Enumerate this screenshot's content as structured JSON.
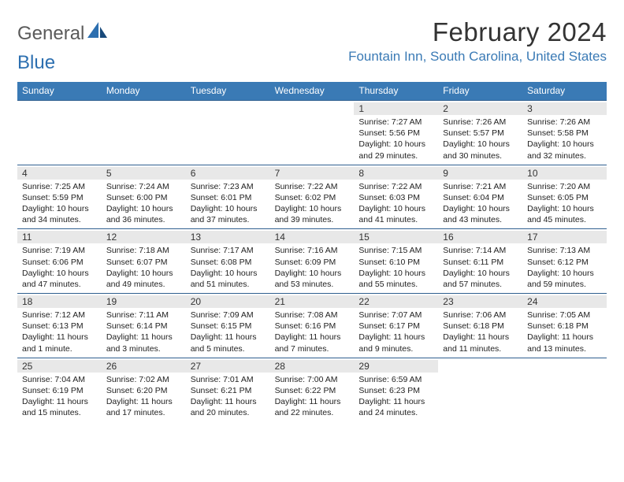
{
  "brand": {
    "part1": "General",
    "part2": "Blue"
  },
  "title": "February 2024",
  "location": "Fountain Inn, South Carolina, United States",
  "colors": {
    "header_bg": "#3a7ab5",
    "header_text": "#ffffff",
    "daynum_bg": "#e8e8e8",
    "border": "#2f5f8f",
    "brand_gray": "#5a5a5a",
    "brand_blue": "#2c6fb0"
  },
  "weekdays": [
    "Sunday",
    "Monday",
    "Tuesday",
    "Wednesday",
    "Thursday",
    "Friday",
    "Saturday"
  ],
  "weeks": [
    [
      {
        "n": "",
        "sr": "",
        "ss": "",
        "dl": ""
      },
      {
        "n": "",
        "sr": "",
        "ss": "",
        "dl": ""
      },
      {
        "n": "",
        "sr": "",
        "ss": "",
        "dl": ""
      },
      {
        "n": "",
        "sr": "",
        "ss": "",
        "dl": ""
      },
      {
        "n": "1",
        "sr": "Sunrise: 7:27 AM",
        "ss": "Sunset: 5:56 PM",
        "dl": "Daylight: 10 hours and 29 minutes."
      },
      {
        "n": "2",
        "sr": "Sunrise: 7:26 AM",
        "ss": "Sunset: 5:57 PM",
        "dl": "Daylight: 10 hours and 30 minutes."
      },
      {
        "n": "3",
        "sr": "Sunrise: 7:26 AM",
        "ss": "Sunset: 5:58 PM",
        "dl": "Daylight: 10 hours and 32 minutes."
      }
    ],
    [
      {
        "n": "4",
        "sr": "Sunrise: 7:25 AM",
        "ss": "Sunset: 5:59 PM",
        "dl": "Daylight: 10 hours and 34 minutes."
      },
      {
        "n": "5",
        "sr": "Sunrise: 7:24 AM",
        "ss": "Sunset: 6:00 PM",
        "dl": "Daylight: 10 hours and 36 minutes."
      },
      {
        "n": "6",
        "sr": "Sunrise: 7:23 AM",
        "ss": "Sunset: 6:01 PM",
        "dl": "Daylight: 10 hours and 37 minutes."
      },
      {
        "n": "7",
        "sr": "Sunrise: 7:22 AM",
        "ss": "Sunset: 6:02 PM",
        "dl": "Daylight: 10 hours and 39 minutes."
      },
      {
        "n": "8",
        "sr": "Sunrise: 7:22 AM",
        "ss": "Sunset: 6:03 PM",
        "dl": "Daylight: 10 hours and 41 minutes."
      },
      {
        "n": "9",
        "sr": "Sunrise: 7:21 AM",
        "ss": "Sunset: 6:04 PM",
        "dl": "Daylight: 10 hours and 43 minutes."
      },
      {
        "n": "10",
        "sr": "Sunrise: 7:20 AM",
        "ss": "Sunset: 6:05 PM",
        "dl": "Daylight: 10 hours and 45 minutes."
      }
    ],
    [
      {
        "n": "11",
        "sr": "Sunrise: 7:19 AM",
        "ss": "Sunset: 6:06 PM",
        "dl": "Daylight: 10 hours and 47 minutes."
      },
      {
        "n": "12",
        "sr": "Sunrise: 7:18 AM",
        "ss": "Sunset: 6:07 PM",
        "dl": "Daylight: 10 hours and 49 minutes."
      },
      {
        "n": "13",
        "sr": "Sunrise: 7:17 AM",
        "ss": "Sunset: 6:08 PM",
        "dl": "Daylight: 10 hours and 51 minutes."
      },
      {
        "n": "14",
        "sr": "Sunrise: 7:16 AM",
        "ss": "Sunset: 6:09 PM",
        "dl": "Daylight: 10 hours and 53 minutes."
      },
      {
        "n": "15",
        "sr": "Sunrise: 7:15 AM",
        "ss": "Sunset: 6:10 PM",
        "dl": "Daylight: 10 hours and 55 minutes."
      },
      {
        "n": "16",
        "sr": "Sunrise: 7:14 AM",
        "ss": "Sunset: 6:11 PM",
        "dl": "Daylight: 10 hours and 57 minutes."
      },
      {
        "n": "17",
        "sr": "Sunrise: 7:13 AM",
        "ss": "Sunset: 6:12 PM",
        "dl": "Daylight: 10 hours and 59 minutes."
      }
    ],
    [
      {
        "n": "18",
        "sr": "Sunrise: 7:12 AM",
        "ss": "Sunset: 6:13 PM",
        "dl": "Daylight: 11 hours and 1 minute."
      },
      {
        "n": "19",
        "sr": "Sunrise: 7:11 AM",
        "ss": "Sunset: 6:14 PM",
        "dl": "Daylight: 11 hours and 3 minutes."
      },
      {
        "n": "20",
        "sr": "Sunrise: 7:09 AM",
        "ss": "Sunset: 6:15 PM",
        "dl": "Daylight: 11 hours and 5 minutes."
      },
      {
        "n": "21",
        "sr": "Sunrise: 7:08 AM",
        "ss": "Sunset: 6:16 PM",
        "dl": "Daylight: 11 hours and 7 minutes."
      },
      {
        "n": "22",
        "sr": "Sunrise: 7:07 AM",
        "ss": "Sunset: 6:17 PM",
        "dl": "Daylight: 11 hours and 9 minutes."
      },
      {
        "n": "23",
        "sr": "Sunrise: 7:06 AM",
        "ss": "Sunset: 6:18 PM",
        "dl": "Daylight: 11 hours and 11 minutes."
      },
      {
        "n": "24",
        "sr": "Sunrise: 7:05 AM",
        "ss": "Sunset: 6:18 PM",
        "dl": "Daylight: 11 hours and 13 minutes."
      }
    ],
    [
      {
        "n": "25",
        "sr": "Sunrise: 7:04 AM",
        "ss": "Sunset: 6:19 PM",
        "dl": "Daylight: 11 hours and 15 minutes."
      },
      {
        "n": "26",
        "sr": "Sunrise: 7:02 AM",
        "ss": "Sunset: 6:20 PM",
        "dl": "Daylight: 11 hours and 17 minutes."
      },
      {
        "n": "27",
        "sr": "Sunrise: 7:01 AM",
        "ss": "Sunset: 6:21 PM",
        "dl": "Daylight: 11 hours and 20 minutes."
      },
      {
        "n": "28",
        "sr": "Sunrise: 7:00 AM",
        "ss": "Sunset: 6:22 PM",
        "dl": "Daylight: 11 hours and 22 minutes."
      },
      {
        "n": "29",
        "sr": "Sunrise: 6:59 AM",
        "ss": "Sunset: 6:23 PM",
        "dl": "Daylight: 11 hours and 24 minutes."
      },
      {
        "n": "",
        "sr": "",
        "ss": "",
        "dl": ""
      },
      {
        "n": "",
        "sr": "",
        "ss": "",
        "dl": ""
      }
    ]
  ]
}
